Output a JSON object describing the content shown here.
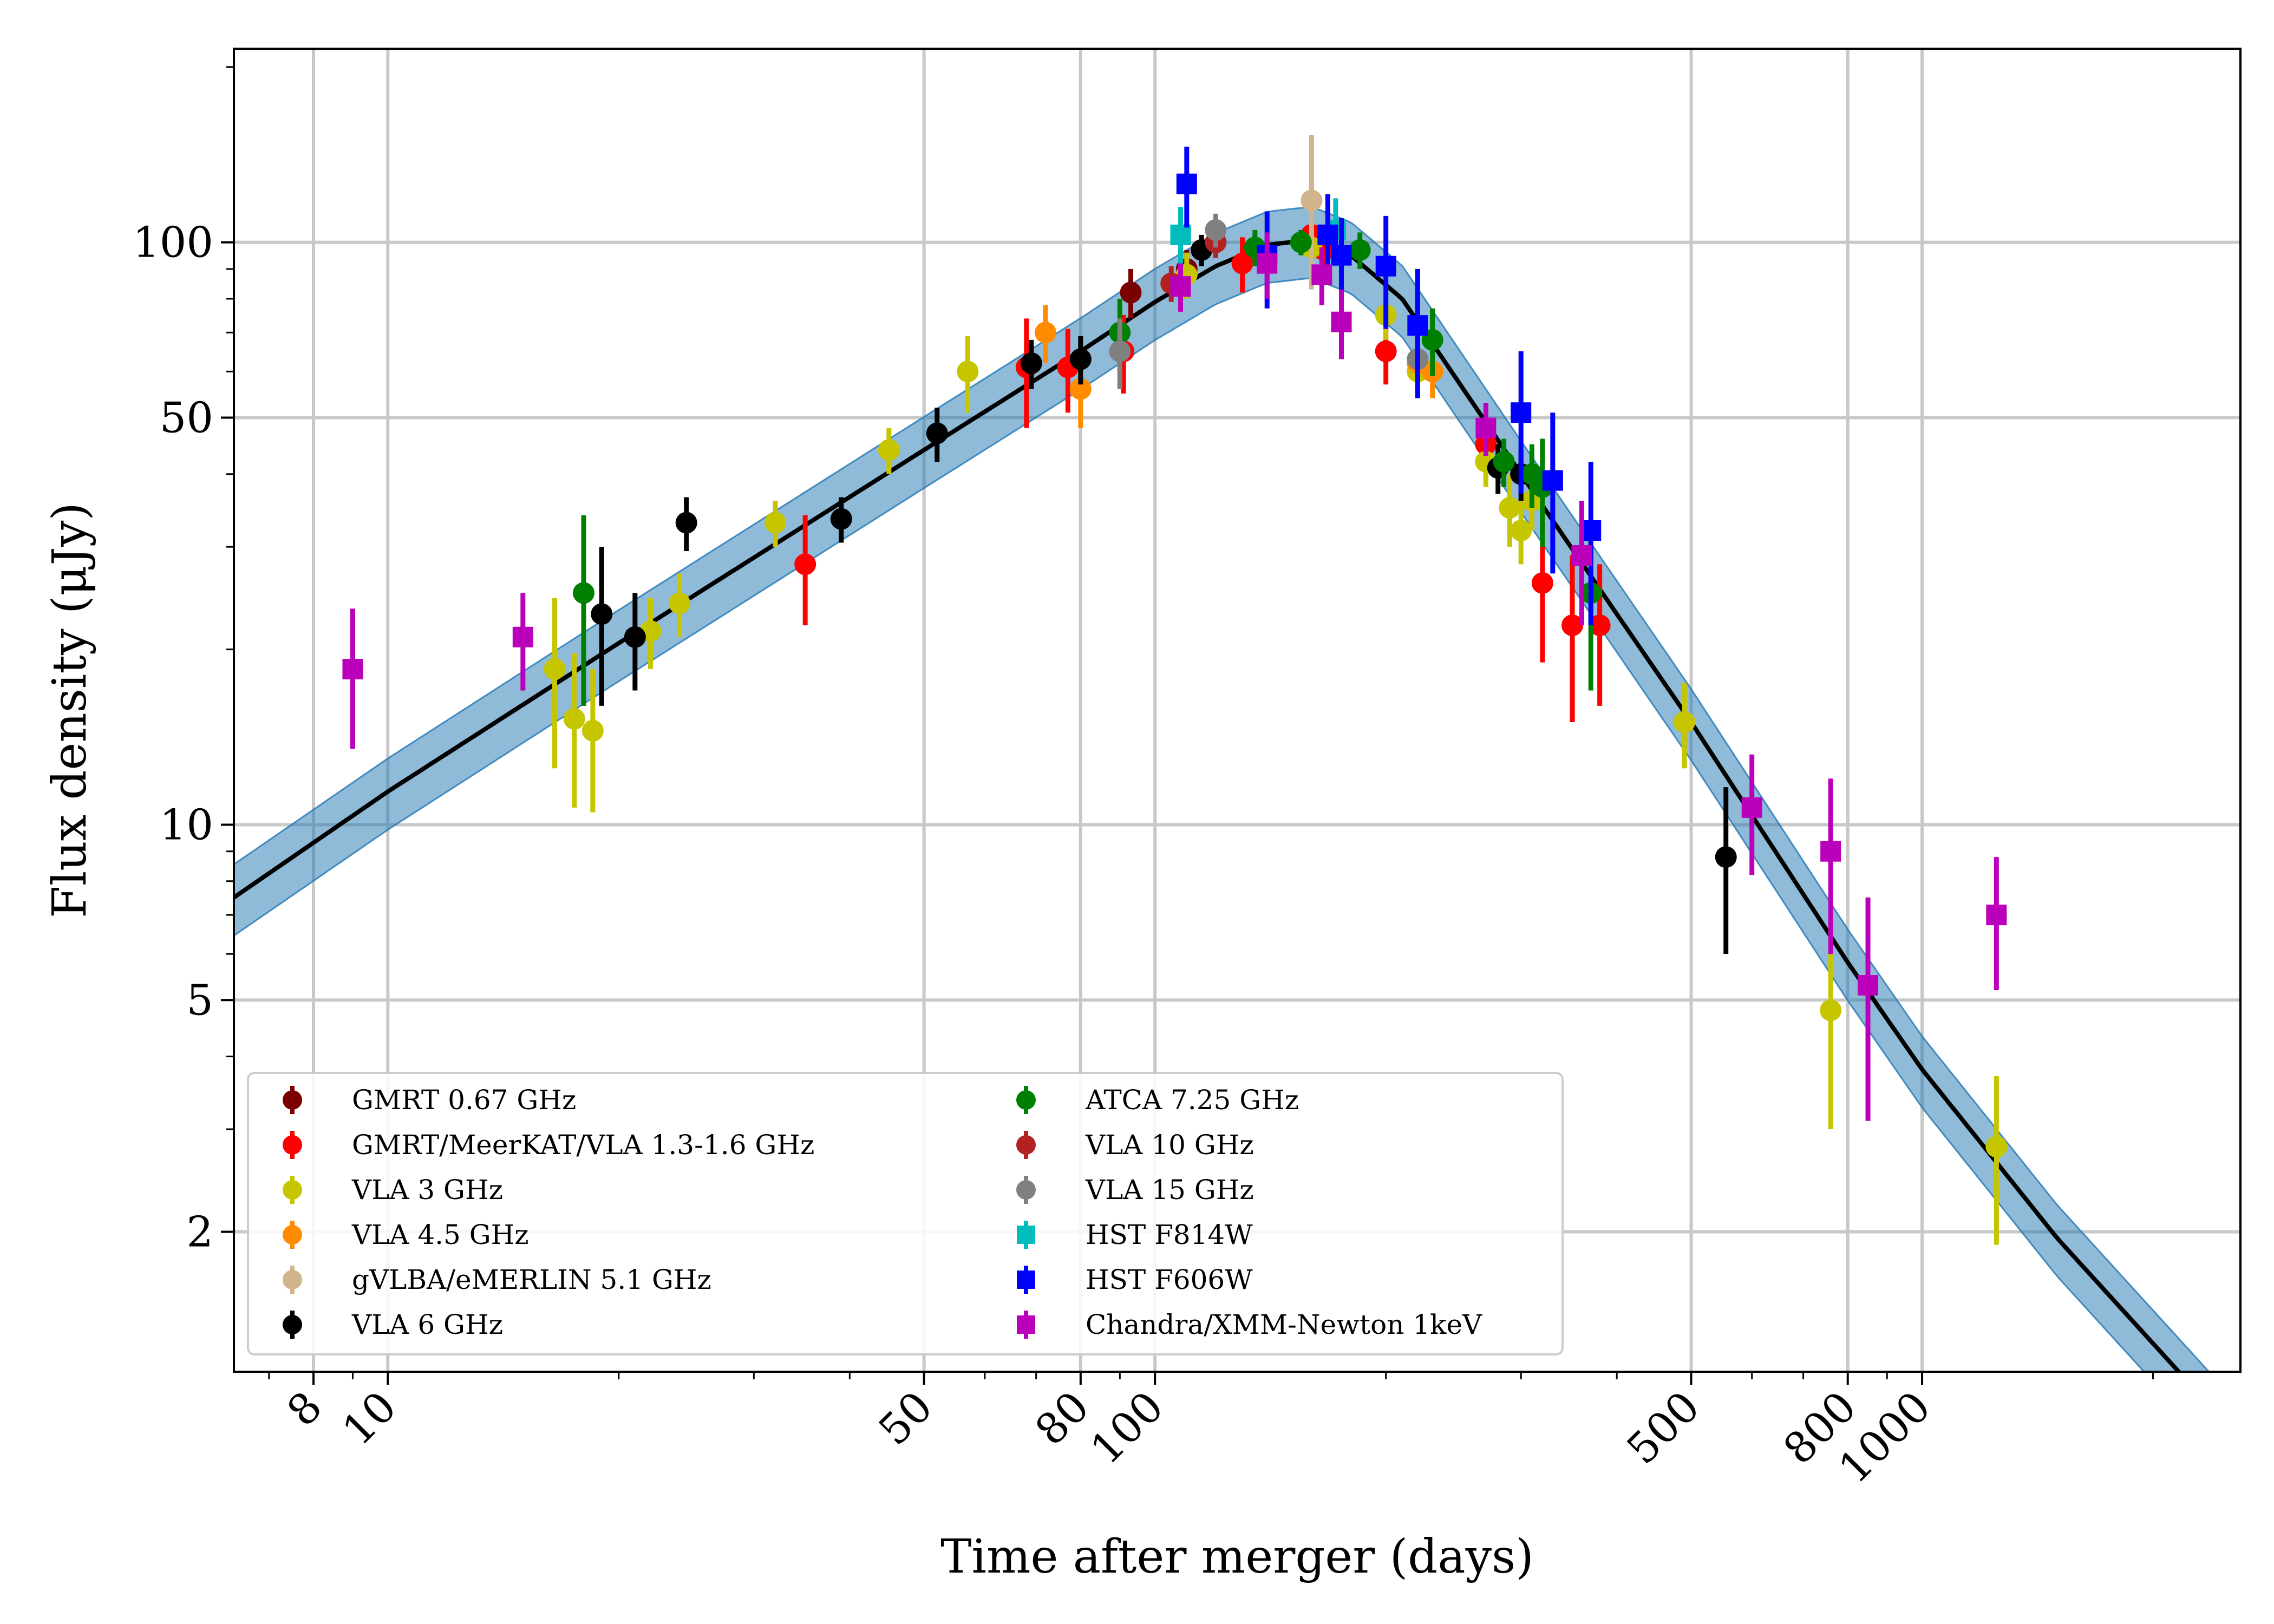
{
  "chart_data": {
    "type": "scatter",
    "title": "",
    "xlabel": "Time after merger (days)",
    "ylabel": "Flux density (μJy)",
    "xscale": "log",
    "yscale": "log",
    "xlim": [
      6.3,
      2600
    ],
    "ylim": [
      1.15,
      215
    ],
    "xticks": [
      8,
      10,
      50,
      80,
      100,
      500,
      800,
      1000
    ],
    "xtick_labels": [
      "8",
      "10",
      "50",
      "80",
      "100",
      "500",
      "800",
      "1000"
    ],
    "xgrid": [
      8,
      10,
      50,
      80,
      100,
      500,
      800,
      1000
    ],
    "yticks": [
      2,
      5,
      10,
      50,
      100
    ],
    "ytick_labels": [
      "2",
      "5",
      "10",
      "50",
      "100"
    ],
    "ygrid": [
      2,
      5,
      10,
      50,
      100
    ],
    "grid": true,
    "legend_position": "lower-left",
    "legend_columns": 2,
    "model": {
      "description": "smoothly broken power-law fit with shaded uncertainty band",
      "line_color": "#000000",
      "band_color": "#1f77b4",
      "curve": [
        [
          6.3,
          7.5
        ],
        [
          10,
          11.4
        ],
        [
          20,
          20.5
        ],
        [
          50,
          44
        ],
        [
          80,
          65
        ],
        [
          100,
          79
        ],
        [
          120,
          91
        ],
        [
          140,
          99
        ],
        [
          160,
          101
        ],
        [
          180,
          95
        ],
        [
          210,
          80
        ],
        [
          250,
          57
        ],
        [
          300,
          40
        ],
        [
          400,
          23
        ],
        [
          500,
          15
        ],
        [
          800,
          5.8
        ],
        [
          1000,
          3.8
        ],
        [
          1500,
          1.95
        ],
        [
          2600,
          0.88
        ]
      ],
      "band_lower_ratio": 0.86,
      "band_upper_ratio": 1.14
    },
    "series": [
      {
        "name": "GMRT 0.67 GHz",
        "color": "#7b0000",
        "marker": "circle",
        "points": [
          [
            93,
            82,
            8
          ],
          [
            110,
            90,
            7
          ]
        ]
      },
      {
        "name": "GMRT/MeerKAT/VLA 1.3-1.6 GHz",
        "color": "#ff0000",
        "marker": "circle",
        "points": [
          [
            35,
            28,
            6
          ],
          [
            68,
            61,
            13
          ],
          [
            77,
            61,
            10
          ],
          [
            91,
            65,
            10
          ],
          [
            130,
            92,
            10
          ],
          [
            160,
            103,
            10
          ],
          [
            166,
            97,
            9
          ],
          [
            200,
            65,
            8
          ],
          [
            270,
            45,
            6
          ],
          [
            320,
            26,
            7
          ],
          [
            350,
            22,
            7
          ],
          [
            380,
            22,
            6
          ]
        ]
      },
      {
        "name": "VLA 3 GHz",
        "color": "#c6c600",
        "marker": "circle",
        "points": [
          [
            16.5,
            18.5,
            6
          ],
          [
            17.5,
            15.2,
            4.5
          ],
          [
            18.5,
            14.5,
            4
          ],
          [
            22,
            21.5,
            3
          ],
          [
            24,
            24,
            3
          ],
          [
            32,
            33,
            3
          ],
          [
            45,
            44,
            4
          ],
          [
            57,
            60,
            9
          ],
          [
            110,
            88,
            8
          ],
          [
            160,
            98,
            7
          ],
          [
            200,
            75,
            7
          ],
          [
            220,
            60,
            6
          ],
          [
            270,
            42,
            4
          ],
          [
            290,
            35,
            5
          ],
          [
            300,
            32,
            4
          ],
          [
            310,
            36,
            4
          ],
          [
            490,
            15,
            2.5
          ],
          [
            760,
            4.8,
            1.8
          ],
          [
            1250,
            2.8,
            0.9
          ]
        ]
      },
      {
        "name": "VLA 4.5 GHz",
        "color": "#ff8c00",
        "marker": "circle",
        "points": [
          [
            72,
            70,
            8
          ],
          [
            80,
            56,
            8
          ],
          [
            220,
            62,
            6
          ],
          [
            230,
            60,
            6
          ]
        ]
      },
      {
        "name": "gVLBA/eMERLIN 5.1 GHz",
        "color": "#d2b48c",
        "marker": "circle",
        "points": [
          [
            160,
            118,
            35
          ]
        ]
      },
      {
        "name": "VLA 6 GHz",
        "color": "#000000",
        "marker": "circle",
        "points": [
          [
            19,
            23,
            7
          ],
          [
            21,
            21,
            4
          ],
          [
            24.5,
            33,
            3.5
          ],
          [
            39,
            33.5,
            3
          ],
          [
            52,
            47,
            5
          ],
          [
            69,
            62,
            6
          ],
          [
            80,
            63,
            6
          ],
          [
            115,
            97,
            6
          ],
          [
            280,
            41,
            4
          ],
          [
            300,
            40,
            4
          ],
          [
            555,
            8.8,
            2.8
          ]
        ]
      },
      {
        "name": "ATCA 7.25 GHz",
        "color": "#008000",
        "marker": "circle",
        "points": [
          [
            18,
            25,
            9
          ],
          [
            90,
            70,
            10
          ],
          [
            135,
            98,
            7
          ],
          [
            155,
            100,
            5
          ],
          [
            185,
            97,
            7
          ],
          [
            230,
            68,
            9
          ],
          [
            285,
            42,
            4
          ],
          [
            310,
            40,
            5
          ],
          [
            320,
            38,
            8
          ],
          [
            370,
            25,
            8
          ]
        ]
      },
      {
        "name": "VLA 10 GHz",
        "color": "#b22222",
        "marker": "circle",
        "points": [
          [
            105,
            85,
            6
          ],
          [
            120,
            100,
            6
          ]
        ]
      },
      {
        "name": "VLA 15 GHz",
        "color": "#808080",
        "marker": "circle",
        "points": [
          [
            90,
            65,
            9
          ],
          [
            120,
            105,
            7
          ],
          [
            220,
            63,
            6
          ]
        ]
      },
      {
        "name": "HST F814W",
        "color": "#00bcbc",
        "marker": "square",
        "points": [
          [
            108,
            103,
            12
          ],
          [
            172,
            105,
            14
          ]
        ]
      },
      {
        "name": "HST F606W",
        "color": "#0000ff",
        "marker": "square",
        "points": [
          [
            110,
            126,
            20
          ],
          [
            140,
            95,
            18
          ],
          [
            168,
            103,
            18
          ],
          [
            175,
            95,
            15
          ],
          [
            200,
            91,
            20
          ],
          [
            220,
            72,
            18
          ],
          [
            300,
            51,
            14
          ],
          [
            330,
            39,
            12
          ],
          [
            370,
            32,
            10
          ]
        ]
      },
      {
        "name": "Chandra/XMM-Newton 1keV",
        "color": "#bb00bb",
        "marker": "square",
        "points": [
          [
            9,
            18.5,
            5
          ],
          [
            15,
            21,
            4
          ],
          [
            108,
            84,
            8
          ],
          [
            140,
            92,
            12
          ],
          [
            165,
            88,
            10
          ],
          [
            175,
            73,
            10
          ],
          [
            270,
            48,
            5
          ],
          [
            360,
            29,
            7
          ],
          [
            600,
            10.7,
            2.5
          ],
          [
            760,
            9,
            3
          ],
          [
            850,
            5.3,
            2.2
          ],
          [
            1250,
            7,
            1.8
          ]
        ]
      }
    ]
  }
}
